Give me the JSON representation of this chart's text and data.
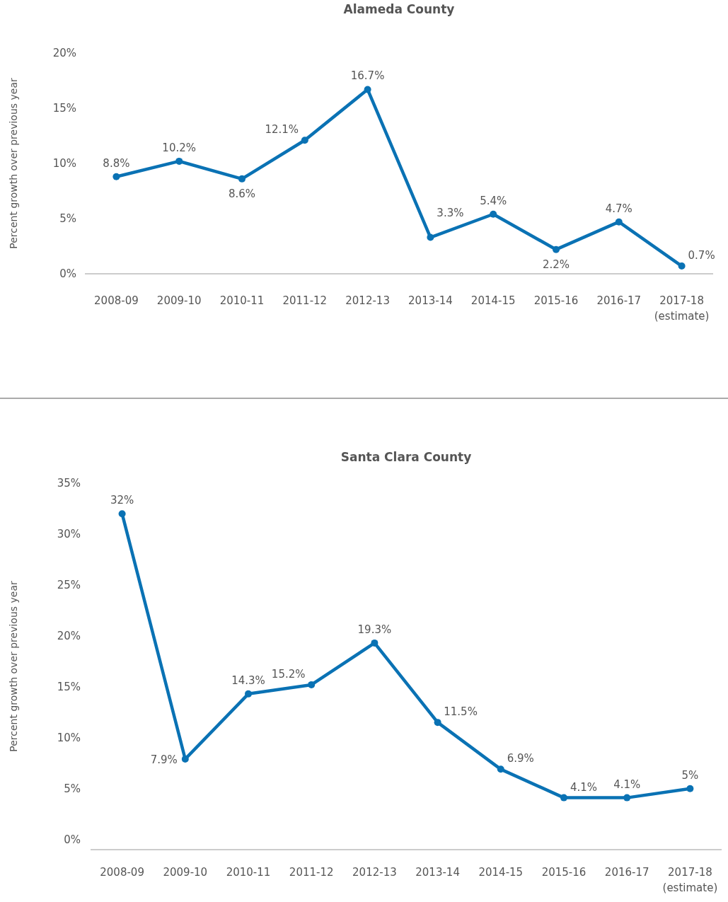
{
  "chart_data": [
    {
      "type": "line",
      "title": "Alameda County",
      "ylabel": "Percent growth over previous year",
      "categories": [
        "2008-09",
        "2009-10",
        "2010-11",
        "2011-12",
        "2012-13",
        "2013-14",
        "2014-15",
        "2015-16",
        "2016-17",
        "2017-18\n(estimate)"
      ],
      "values": [
        8.8,
        10.2,
        8.6,
        12.1,
        16.7,
        3.3,
        5.4,
        2.2,
        4.7,
        0.7
      ],
      "value_labels": [
        "8.8%",
        "10.2%",
        "8.6%",
        "12.1%",
        "16.7%",
        "3.3%",
        "5.4%",
        "2.2%",
        "4.7%",
        "0.7%"
      ],
      "color": "#0a72b4",
      "marker": "circle",
      "ylim": [
        0,
        20
      ],
      "yticks": [
        {
          "value": 0,
          "label": "0%"
        },
        {
          "value": 5,
          "label": "5%"
        },
        {
          "value": 10,
          "label": "10%"
        },
        {
          "value": 15,
          "label": "15%"
        },
        {
          "value": 20,
          "label": "20%"
        }
      ]
    },
    {
      "type": "line",
      "title": "Santa Clara County",
      "ylabel": "Percent growth over previous year",
      "categories": [
        "2008-09",
        "2009-10",
        "2010-11",
        "2011-12",
        "2012-13",
        "2013-14",
        "2014-15",
        "2015-16",
        "2016-17",
        "2017-18\n(estimate)"
      ],
      "values": [
        32,
        7.9,
        14.3,
        15.2,
        19.3,
        11.5,
        6.9,
        4.1,
        4.1,
        5
      ],
      "value_labels": [
        "32%",
        "7.9%",
        "14.3%",
        "15.2%",
        "19.3%",
        "11.5%",
        "6.9%",
        "4.1%",
        "4.1%",
        "5%"
      ],
      "color": "#0a72b4",
      "marker": "circle",
      "ylim": [
        -1,
        35
      ],
      "yticks": [
        {
          "value": 0,
          "label": "0%"
        },
        {
          "value": 5,
          "label": "5%"
        },
        {
          "value": 10,
          "label": "10%"
        },
        {
          "value": 15,
          "label": "15%"
        },
        {
          "value": 20,
          "label": "20%"
        },
        {
          "value": 25,
          "label": "25%"
        },
        {
          "value": 30,
          "label": "30%"
        },
        {
          "value": 35,
          "label": "35%"
        }
      ]
    }
  ]
}
